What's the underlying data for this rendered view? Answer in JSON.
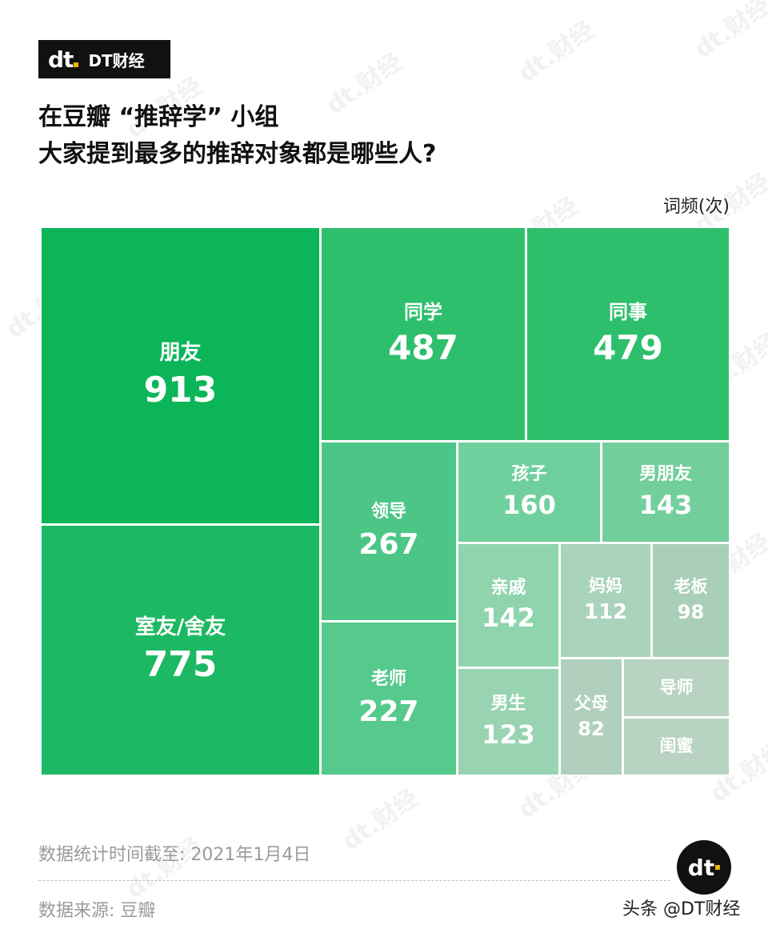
{
  "brand": {
    "logo": "dt",
    "name": "DT财经"
  },
  "title": {
    "line1": "在豆瓣 “推辞学” 小组",
    "line2": "大家提到最多的推辞对象都是哪些人?"
  },
  "unit_label": "词频(次)",
  "chart_data": {
    "type": "treemap",
    "title": "在豆瓣 “推辞学” 小组 大家提到最多的推辞对象都是哪些人?",
    "unit": "词频(次)",
    "items": [
      {
        "label": "朋友",
        "value": 913,
        "color": "#0db559"
      },
      {
        "label": "室友/舍友",
        "value": 775,
        "color": "#1db863"
      },
      {
        "label": "同学",
        "value": 487,
        "color": "#2ebf6c"
      },
      {
        "label": "同事",
        "value": 479,
        "color": "#2ebf6c"
      },
      {
        "label": "领导",
        "value": 267,
        "color": "#4cc687"
      },
      {
        "label": "老师",
        "value": 227,
        "color": "#56c98c"
      },
      {
        "label": "孩子",
        "value": 160,
        "color": "#70d09d"
      },
      {
        "label": "男朋友",
        "value": 143,
        "color": "#72cf9c"
      },
      {
        "label": "亲戚",
        "value": 142,
        "color": "#8fd4ad"
      },
      {
        "label": "男生",
        "value": 123,
        "color": "#98d4b1"
      },
      {
        "label": "妈妈",
        "value": 112,
        "color": "#a9d3bb"
      },
      {
        "label": "老板",
        "value": 98,
        "color": "#a9cfb8"
      },
      {
        "label": "父母",
        "value": 82,
        "color": "#b0d0bd"
      },
      {
        "label": "导师",
        "value": null,
        "color": "#b8d3c2"
      },
      {
        "label": "闺蜜",
        "value": null,
        "color": "#b8d3c2"
      }
    ]
  },
  "footer": {
    "stat_date": "数据统计时间截至: 2021年1月4日",
    "source": "数据来源: 豆瓣",
    "circle_logo": "dt",
    "watermark_credit": "头条 @DT财经"
  },
  "watermark_text": "dt.财经"
}
